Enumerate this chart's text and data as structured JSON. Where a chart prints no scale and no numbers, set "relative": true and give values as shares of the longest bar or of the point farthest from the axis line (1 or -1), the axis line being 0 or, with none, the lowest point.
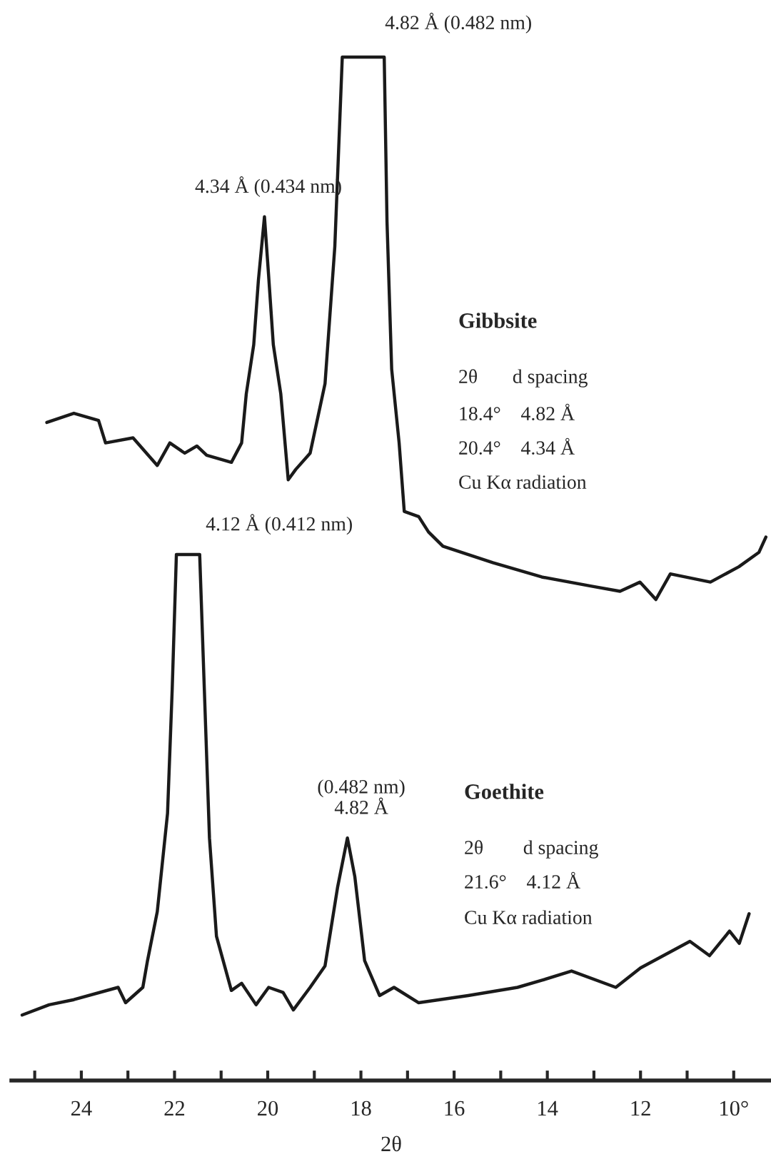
{
  "chart_data": {
    "type": "line",
    "relative": true,
    "xlabel": "2θ",
    "xlim": [
      25.5,
      9.2
    ],
    "xticks": [
      {
        "value": 25,
        "label": null
      },
      24,
      {
        "value": 23,
        "label": null
      },
      22,
      {
        "value": 21,
        "label": null
      },
      20,
      {
        "value": 19,
        "label": null
      },
      18,
      {
        "value": 17,
        "label": null
      },
      16,
      {
        "value": 15,
        "label": null
      },
      14,
      {
        "value": 13,
        "label": null
      },
      12,
      {
        "value": 11,
        "label": null
      },
      {
        "value": 10,
        "label": "10°"
      }
    ],
    "grid": false,
    "legend": false,
    "marker": "none",
    "line_style": "solid",
    "series": [
      {
        "color": "#1a1a1a",
        "x": [
          24.74,
          24.16,
          23.63,
          23.48,
          22.89,
          22.37,
          22.1,
          21.78,
          21.52,
          21.31,
          20.78,
          20.56,
          20.46,
          20.3,
          20.2,
          20.07,
          19.98,
          19.88,
          19.72,
          19.56,
          19.4,
          19.09,
          18.77,
          18.56,
          18.4,
          17.5,
          17.44,
          17.34,
          17.18,
          17.07,
          16.76,
          16.55,
          16.24,
          15.17,
          14.12,
          13.05,
          12.44,
          12.01,
          11.67,
          11.36,
          10.5,
          9.89,
          9.46,
          9.31
        ],
        "values": [
          0.643,
          0.652,
          0.645,
          0.623,
          0.628,
          0.601,
          0.623,
          0.613,
          0.62,
          0.611,
          0.604,
          0.623,
          0.671,
          0.719,
          0.782,
          0.844,
          0.786,
          0.719,
          0.671,
          0.587,
          0.597,
          0.613,
          0.681,
          0.815,
          1,
          1,
          0.839,
          0.695,
          0.623,
          0.556,
          0.551,
          0.536,
          0.522,
          0.506,
          0.492,
          0.483,
          0.478,
          0.487,
          0.47,
          0.495,
          0.487,
          0.502,
          0.516,
          0.531
        ]
      },
      {
        "color": "#1a1a1a",
        "x": [
          25.27,
          24.69,
          24.16,
          23.21,
          23.05,
          22.68,
          22.58,
          22.37,
          22.15,
          22.05,
          21.96,
          21.46,
          21.36,
          21.25,
          21.1,
          20.78,
          20.56,
          20.25,
          19.98,
          19.67,
          19.45,
          19.09,
          18.77,
          18.5,
          18.29,
          18.13,
          17.92,
          17.6,
          17.29,
          16.76,
          15.7,
          14.64,
          14.11,
          13.48,
          12.53,
          12.0,
          10.94,
          10.52,
          10.09,
          9.88,
          9.67
        ],
        "values": [
          0.064,
          0.074,
          0.079,
          0.091,
          0.076,
          0.091,
          0.117,
          0.165,
          0.261,
          0.382,
          0.514,
          0.514,
          0.382,
          0.237,
          0.141,
          0.088,
          0.095,
          0.074,
          0.091,
          0.086,
          0.069,
          0.091,
          0.112,
          0.189,
          0.237,
          0.199,
          0.117,
          0.083,
          0.091,
          0.076,
          0.083,
          0.091,
          0.098,
          0.107,
          0.091,
          0.11,
          0.136,
          0.122,
          0.146,
          0.134,
          0.163
        ]
      }
    ],
    "annotations": [
      {
        "text": "4.82 Å (0.482 nm)",
        "x": 17.95,
        "y": 1
      },
      {
        "text": "4.34 Å (0.434 nm)",
        "x": 20.07,
        "y": 0.844
      },
      {
        "text": "4.12 Å (0.412 nm)",
        "x": 21.71,
        "y": 0.514
      },
      {
        "text": "(0.482 nm)\n4.82 Å",
        "x": 18.29,
        "y": 0.237
      },
      "Gibbsite",
      "2θ       d spacing",
      "18.4°    4.82 Å",
      "20.4°    4.34 Å",
      "Cu Kα radiation",
      "Goethite",
      "2θ        d spacing",
      "21.6°    4.12 Å",
      "Cu Kα radiation"
    ]
  }
}
